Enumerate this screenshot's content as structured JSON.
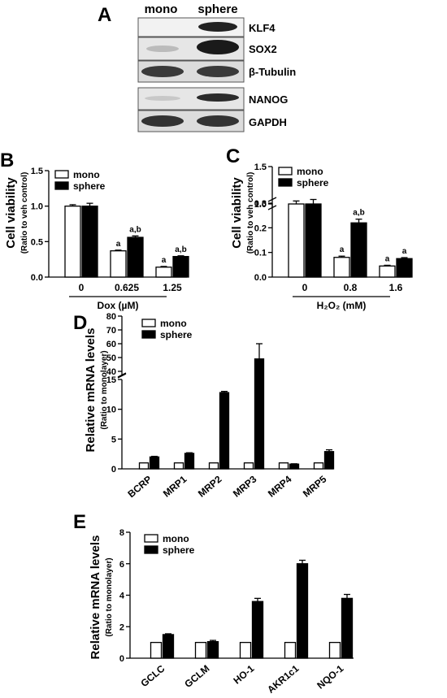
{
  "blot": {
    "panel_label": "A",
    "col_labels": [
      "mono",
      "sphere"
    ],
    "group1": [
      "KLF4",
      "SOX2",
      "β-Tubulin"
    ],
    "group2": [
      "NANOG",
      "GAPDH"
    ]
  },
  "chart_data": [
    {
      "panel_label": "B",
      "type": "bar",
      "categories": [
        "0",
        "0.625",
        "1.25"
      ],
      "series": [
        {
          "name": "mono",
          "values": [
            1.0,
            0.37,
            0.14
          ],
          "errors": [
            0.02,
            0.01,
            0.01
          ]
        },
        {
          "name": "sphere",
          "values": [
            1.0,
            0.56,
            0.29
          ],
          "errors": [
            0.04,
            0.02,
            0.01
          ]
        }
      ],
      "annotations": {
        "mono": [
          "",
          "a",
          "a"
        ],
        "sphere": [
          "",
          "a,b",
          "a,b"
        ]
      },
      "ylabel": "Cell viability",
      "ylabel_sub": "(Ratio to veh control)",
      "xlabel": "Dox (µM)",
      "ylim": [
        0.0,
        1.5
      ],
      "yticks": [
        "0.0",
        "0.5",
        "1.0",
        "1.5"
      ],
      "legend": "top-left"
    },
    {
      "panel_label": "C",
      "type": "bar",
      "categories": [
        "0",
        "0.8",
        "1.6"
      ],
      "series": [
        {
          "name": "mono",
          "values": [
            1.0,
            0.08,
            0.045
          ],
          "errors": [
            0.04,
            0.005,
            0.003
          ]
        },
        {
          "name": "sphere",
          "values": [
            1.0,
            0.22,
            0.075
          ],
          "errors": [
            0.06,
            0.015,
            0.004
          ]
        }
      ],
      "annotations": {
        "mono": [
          "",
          "a",
          "a"
        ],
        "sphere": [
          "",
          "a,b",
          "a"
        ]
      },
      "ylabel": "Cell viability",
      "ylabel_sub": "(Ratio to veh control)",
      "xlabel": "H₂O₂ (mM)",
      "ylim": [
        0.0,
        1.5
      ],
      "axis_break": [
        0.3,
        0.9
      ],
      "yticks_lower": [
        "0.0",
        "0.1",
        "0.2",
        "0.3"
      ],
      "yticks_upper": [
        "1.0",
        "1.5"
      ],
      "legend": "top-left"
    },
    {
      "panel_label": "D",
      "type": "bar",
      "categories": [
        "BCRP",
        "MRP1",
        "MRP2",
        "MRP3",
        "MRP4",
        "MRP5"
      ],
      "series": [
        {
          "name": "mono",
          "values": [
            1,
            1,
            1,
            1,
            1,
            1
          ],
          "errors": [
            0,
            0,
            0,
            0,
            0,
            0
          ]
        },
        {
          "name": "sphere",
          "values": [
            2.0,
            2.6,
            12.8,
            49,
            0.8,
            2.9
          ],
          "errors": [
            0.1,
            0.1,
            0.2,
            11,
            0.05,
            0.3
          ]
        }
      ],
      "ylabel": "Relative mRNA levels",
      "ylabel_sub": "(Ratio to monolayer)",
      "ylim": [
        0,
        80
      ],
      "axis_break": [
        15,
        40
      ],
      "yticks_lower": [
        "0",
        "5",
        "10",
        "15"
      ],
      "yticks_upper": [
        "40",
        "50",
        "60",
        "70",
        "80"
      ],
      "legend": "top-left"
    },
    {
      "panel_label": "E",
      "type": "bar",
      "categories": [
        "GCLC",
        "GCLM",
        "HO-1",
        "AKR1c1",
        "NQO-1"
      ],
      "series": [
        {
          "name": "mono",
          "values": [
            1,
            1,
            1,
            1,
            1
          ],
          "errors": [
            0,
            0,
            0,
            0,
            0
          ]
        },
        {
          "name": "sphere",
          "values": [
            1.5,
            1.05,
            3.6,
            6.0,
            3.8
          ],
          "errors": [
            0.05,
            0.08,
            0.2,
            0.22,
            0.25
          ]
        }
      ],
      "ylabel": "Relative mRNA levels",
      "ylabel_sub": "(Ratio to monolayer)",
      "ylim": [
        0,
        8
      ],
      "yticks": [
        "0",
        "2",
        "4",
        "6",
        "8"
      ],
      "legend": "top-left"
    }
  ]
}
